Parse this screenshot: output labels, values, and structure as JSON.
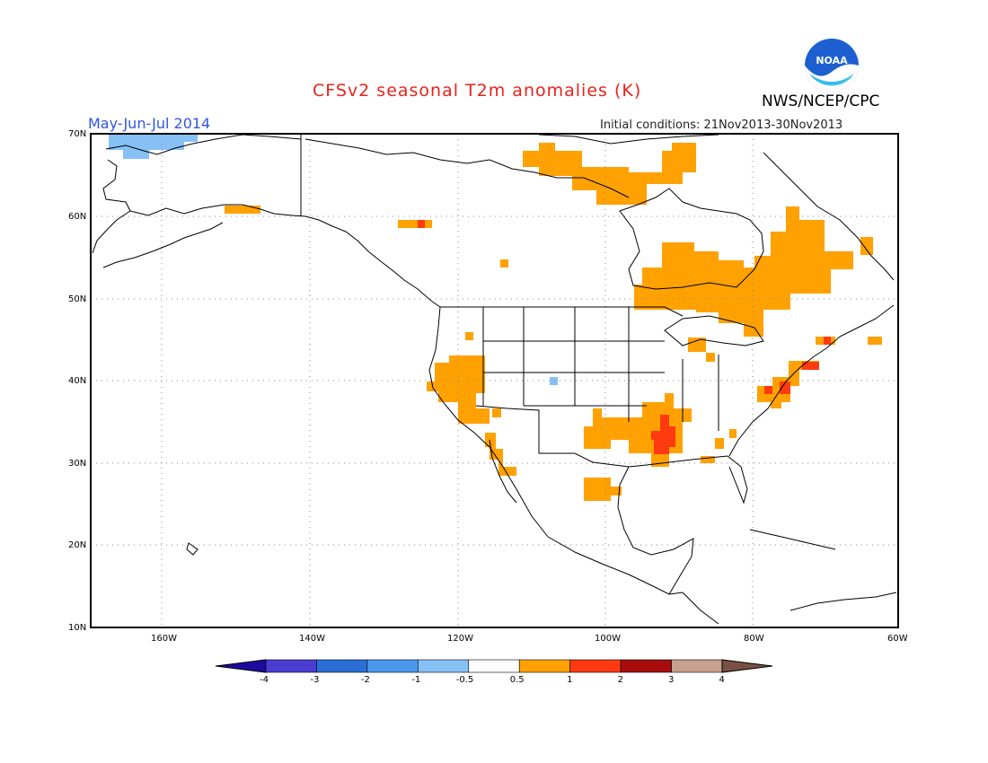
{
  "title": "CFSv2 seasonal T2m anomalies (K)",
  "season": "May-Jun-Jul 2014",
  "initial_conditions": "Initial conditions: 21Nov2013-30Nov2013",
  "agency": "NWS/NCEP/CPC",
  "logo_text": "NOAA",
  "lat_labels": [
    "70N",
    "60N",
    "50N",
    "40N",
    "30N",
    "20N",
    "10N"
  ],
  "lon_labels": [
    "160W",
    "140W",
    "120W",
    "100W",
    "80W",
    "60W"
  ],
  "colorbar": {
    "labels": [
      "-4",
      "-3",
      "-2",
      "-1",
      "-0.5",
      "0.5",
      "1",
      "2",
      "3",
      "4"
    ],
    "colors": [
      "#1e0aa0",
      "#4b3cd2",
      "#2a6ed6",
      "#4a97ee",
      "#86c0f5",
      "#ffffff",
      "#ffa100",
      "#ff3a10",
      "#a80d0d",
      "#c8a090",
      "#7a5044"
    ]
  },
  "colors": {
    "warm1": "#ffa100",
    "warm2": "#ff3a10",
    "cool1": "#86c0f5",
    "coast": "#000000",
    "title": "#e8231b",
    "season": "#2f56e6"
  }
}
